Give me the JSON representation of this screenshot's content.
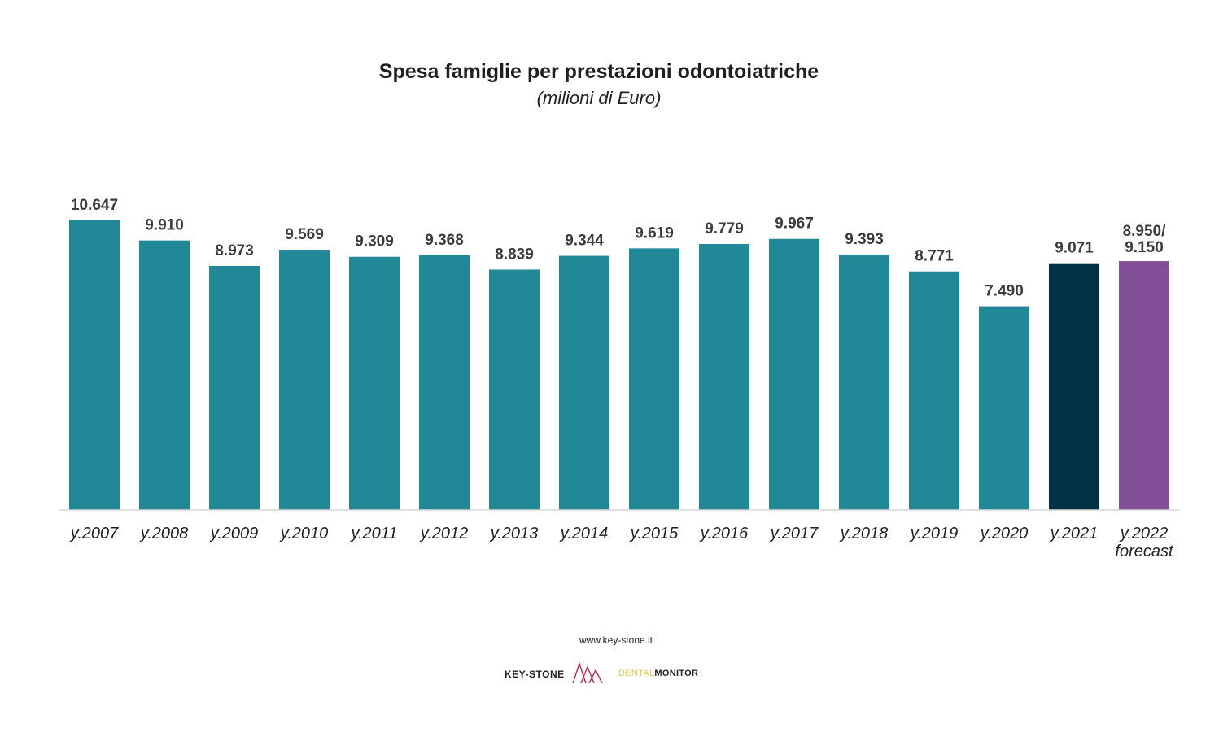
{
  "chart_data": {
    "type": "bar",
    "title": "Spesa famiglie per prestazioni odontoiatriche",
    "subtitle": "(milioni di Euro)",
    "xlabel": "",
    "ylabel": "",
    "ylim": [
      0,
      10647
    ],
    "grid": false,
    "legend": "none",
    "bars": [
      {
        "category": "y.2007",
        "value": 10647,
        "label": "10.647",
        "color": "#218898"
      },
      {
        "category": "y.2008",
        "value": 9910,
        "label": "9.910",
        "color": "#218898"
      },
      {
        "category": "y.2009",
        "value": 8973,
        "label": "8.973",
        "color": "#218898"
      },
      {
        "category": "y.2010",
        "value": 9569,
        "label": "9.569",
        "color": "#218898"
      },
      {
        "category": "y.2011",
        "value": 9309,
        "label": "9.309",
        "color": "#218898"
      },
      {
        "category": "y.2012",
        "value": 9368,
        "label": "9.368",
        "color": "#218898"
      },
      {
        "category": "y.2013",
        "value": 8839,
        "label": "8.839",
        "color": "#218898"
      },
      {
        "category": "y.2014",
        "value": 9344,
        "label": "9.344",
        "color": "#218898"
      },
      {
        "category": "y.2015",
        "value": 9619,
        "label": "9.619",
        "color": "#218898"
      },
      {
        "category": "y.2016",
        "value": 9779,
        "label": "9.779",
        "color": "#218898"
      },
      {
        "category": "y.2017",
        "value": 9967,
        "label": "9.967",
        "color": "#218898"
      },
      {
        "category": "y.2018",
        "value": 9393,
        "label": "9.393",
        "color": "#218898"
      },
      {
        "category": "y.2019",
        "value": 8771,
        "label": "8.771",
        "color": "#218898"
      },
      {
        "category": "y.2020",
        "value": 7490,
        "label": "7.490",
        "color": "#218898"
      },
      {
        "category": "y.2021",
        "value": 9071,
        "label": "9.071",
        "color": "#033146"
      },
      {
        "category": "y.2022",
        "category_line2": "forecast",
        "value": 9150,
        "label": "8.950/",
        "label_line2": "9.150",
        "color": "#834f98"
      }
    ]
  },
  "footer": {
    "website": "www.key-stone.it",
    "logo_keystone": "KEY-STONE",
    "logo_dental_light": "DENTAL",
    "logo_dental_bold": "MONITOR"
  }
}
